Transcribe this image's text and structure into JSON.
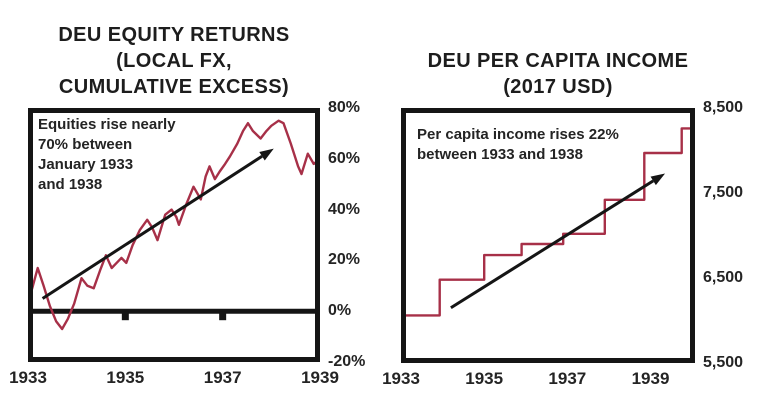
{
  "page": {
    "background": "#ffffff"
  },
  "colors": {
    "ink": "#151515",
    "text": "#242424",
    "line_red": "#a73048"
  },
  "chart_data": [
    {
      "type": "line",
      "title": "DEU EQUITY RETURNS\n(LOCAL FX,\nCUMULATIVE EXCESS)",
      "annotation": "Equities rise nearly\n70% between\nJanuary 1933\nand 1938",
      "xlabel": "",
      "ylabel": "",
      "grid": false,
      "legend": null,
      "xlim": [
        1933,
        1939
      ],
      "ylim": [
        -20,
        80
      ],
      "x_ticks": [
        {
          "value": 1933,
          "label": "1933"
        },
        {
          "value": 1935,
          "label": "1935"
        },
        {
          "value": 1937,
          "label": "1937"
        },
        {
          "value": 1939,
          "label": "1939"
        }
      ],
      "y_ticks": [
        {
          "value": 80,
          "label": "80%"
        },
        {
          "value": 60,
          "label": "60%"
        },
        {
          "value": 40,
          "label": "40%"
        },
        {
          "value": 20,
          "label": "20%"
        },
        {
          "value": 0,
          "label": "0%"
        },
        {
          "value": -20,
          "label": "-20%"
        }
      ],
      "zero_line_at": 0,
      "axis_ticks_on_zero_line": [
        1935,
        1937
      ],
      "series": [
        {
          "name": "DEU equity cumulative excess return (local FX)",
          "color": "#a73048",
          "x": [
            1933.0,
            1933.1,
            1933.2,
            1933.32,
            1933.45,
            1933.58,
            1933.7,
            1933.82,
            1933.95,
            1934.1,
            1934.22,
            1934.35,
            1934.48,
            1934.6,
            1934.72,
            1934.82,
            1934.92,
            1935.02,
            1935.15,
            1935.3,
            1935.45,
            1935.55,
            1935.66,
            1935.82,
            1935.95,
            1936.05,
            1936.1,
            1936.25,
            1936.4,
            1936.55,
            1936.65,
            1936.73,
            1936.84,
            1936.94,
            1937.05,
            1937.15,
            1937.3,
            1937.42,
            1937.52,
            1937.62,
            1937.78,
            1937.9,
            1938.0,
            1938.15,
            1938.25,
            1938.4,
            1938.55,
            1938.62,
            1938.75,
            1938.87,
            1939.0
          ],
          "y": [
            3,
            10,
            17,
            10,
            2,
            -4,
            -7,
            -3,
            3,
            13,
            10,
            9,
            16,
            22,
            17,
            19,
            21,
            19,
            26,
            32,
            36,
            33,
            28,
            38,
            40,
            37,
            34,
            42,
            49,
            44,
            53,
            57,
            52,
            55,
            58,
            61,
            66,
            71,
            74,
            71,
            68,
            71,
            73,
            75,
            74,
            66,
            57,
            54,
            62,
            58,
            60
          ]
        }
      ],
      "trend_arrow": {
        "x1": 1933.3,
        "y1": 5,
        "x2": 1938.05,
        "y2": 64
      }
    },
    {
      "type": "line",
      "line_style": "step",
      "title": "DEU PER CAPITA INCOME\n(2017 USD)",
      "annotation": "Per capita income rises 22%\nbetween 1933 and 1938",
      "xlabel": "",
      "ylabel": "",
      "grid": false,
      "legend": null,
      "xlim": [
        1933,
        1940.07
      ],
      "ylim": [
        5500,
        8500
      ],
      "x_ticks": [
        {
          "value": 1933,
          "label": "1933"
        },
        {
          "value": 1935,
          "label": "1935"
        },
        {
          "value": 1937,
          "label": "1937"
        },
        {
          "value": 1939,
          "label": "1939"
        }
      ],
      "y_ticks": [
        {
          "value": 8500,
          "label": "8,500"
        },
        {
          "value": 7500,
          "label": "7,500"
        },
        {
          "value": 6500,
          "label": "6,500"
        },
        {
          "value": 5500,
          "label": "5,500"
        }
      ],
      "zero_line_at": null,
      "axis_ticks_on_zero_line": [],
      "series": [
        {
          "name": "DEU per capita income (2017 USD)",
          "color": "#a73048",
          "x": [
            1933.0,
            1933.93,
            1933.93,
            1935.0,
            1935.0,
            1935.9,
            1935.9,
            1936.9,
            1936.9,
            1937.9,
            1937.9,
            1938.85,
            1938.85,
            1939.75,
            1939.75,
            1940.07
          ],
          "y": [
            6060,
            6060,
            6480,
            6480,
            6770,
            6770,
            6900,
            6900,
            7020,
            7020,
            7420,
            7420,
            7970,
            7970,
            8260,
            8260
          ]
        }
      ],
      "trend_arrow": {
        "x1": 1934.2,
        "y1": 6150,
        "x2": 1939.35,
        "y2": 7730
      }
    }
  ]
}
